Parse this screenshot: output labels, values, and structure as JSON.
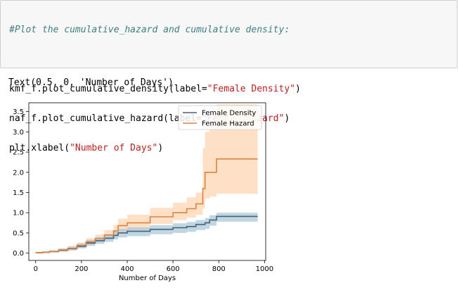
{
  "code_cell": {
    "comment": "#Plot the cumulative_hazard and cumulative density:",
    "lines": [
      {
        "pre": "kmf_f.plot_cumulative_density(label=",
        "str": "\"Female Density\"",
        "post": ")"
      },
      {
        "pre": "naf_f.plot_cumulative_hazard(label=",
        "str": "\"Female Hazard\"",
        "post": ")"
      },
      {
        "pre": "plt.xlabel(",
        "str": "\"Number of Days\"",
        "post": ")"
      }
    ]
  },
  "output": {
    "text": "Text(0.5, 0, 'Number of Days')"
  },
  "chart_data": {
    "type": "line",
    "xlabel": "Number of Days",
    "ylabel": "",
    "xlim": [
      -30,
      1005
    ],
    "ylim": [
      -0.18,
      3.72
    ],
    "xticks": [
      0,
      200,
      400,
      600,
      800,
      1000
    ],
    "xtick_labels": [
      "0",
      "200",
      "400",
      "600",
      "800",
      "1000"
    ],
    "yticks": [
      0.0,
      0.5,
      1.0,
      1.5,
      2.0,
      2.5,
      3.0,
      3.5
    ],
    "ytick_labels": [
      "0.0",
      "0.5",
      "1.0",
      "1.5",
      "2.0",
      "2.5",
      "3.0",
      "3.5"
    ],
    "legend_position": "top-right",
    "grid": false,
    "series": [
      {
        "name": "Female Density",
        "color": "#4c6178",
        "band_color": "#aac8da",
        "x": [
          0,
          30,
          60,
          100,
          140,
          180,
          220,
          260,
          300,
          340,
          360,
          400,
          500,
          600,
          660,
          700,
          740,
          760,
          790,
          970
        ],
        "y": [
          0.01,
          0.02,
          0.04,
          0.07,
          0.11,
          0.17,
          0.25,
          0.31,
          0.37,
          0.44,
          0.5,
          0.54,
          0.59,
          0.63,
          0.66,
          0.71,
          0.75,
          0.82,
          0.91,
          0.91
        ],
        "lower": [
          0.0,
          0.01,
          0.02,
          0.04,
          0.07,
          0.12,
          0.18,
          0.23,
          0.28,
          0.34,
          0.39,
          0.42,
          0.47,
          0.5,
          0.53,
          0.57,
          0.6,
          0.68,
          0.78,
          0.78
        ],
        "upper": [
          0.03,
          0.04,
          0.07,
          0.11,
          0.16,
          0.24,
          0.33,
          0.4,
          0.47,
          0.54,
          0.6,
          0.64,
          0.69,
          0.74,
          0.77,
          0.82,
          0.87,
          0.94,
          1.0,
          1.0
        ]
      },
      {
        "name": "Female Hazard",
        "color": "#e0823d",
        "band_color": "#fdd5b4",
        "x": [
          0,
          30,
          60,
          100,
          140,
          180,
          220,
          260,
          300,
          340,
          360,
          400,
          500,
          600,
          660,
          700,
          730,
          740,
          760,
          790,
          970
        ],
        "y": [
          0.01,
          0.02,
          0.04,
          0.08,
          0.12,
          0.19,
          0.28,
          0.36,
          0.45,
          0.55,
          0.68,
          0.75,
          0.9,
          1.0,
          1.1,
          1.22,
          1.6,
          2.0,
          2.0,
          2.33,
          2.33
        ],
        "lower": [
          0.0,
          0.01,
          0.02,
          0.04,
          0.07,
          0.13,
          0.2,
          0.27,
          0.34,
          0.42,
          0.53,
          0.58,
          0.72,
          0.82,
          0.88,
          0.95,
          1.1,
          1.35,
          1.4,
          1.47,
          1.47
        ],
        "upper": [
          0.03,
          0.05,
          0.07,
          0.12,
          0.18,
          0.26,
          0.37,
          0.46,
          0.57,
          0.7,
          0.85,
          0.95,
          1.12,
          1.25,
          1.38,
          1.5,
          2.6,
          3.0,
          3.25,
          3.68,
          3.68
        ]
      }
    ]
  }
}
